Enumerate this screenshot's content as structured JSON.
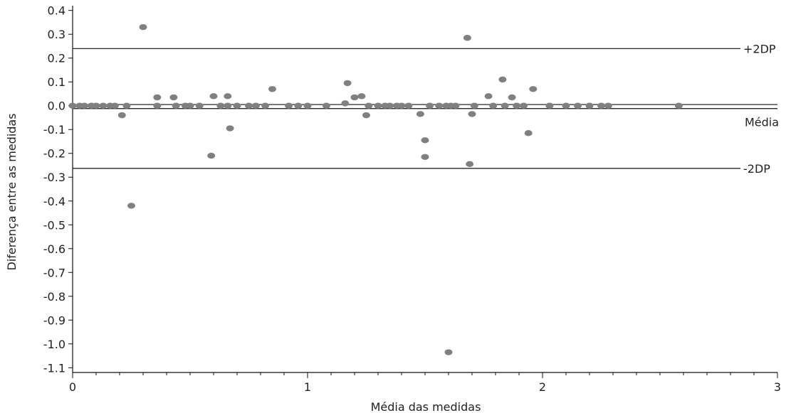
{
  "chart_data": {
    "type": "scatter",
    "xlabel": "Média das medidas",
    "ylabel": "Diferença entre as medidas",
    "xlim": [
      0,
      3
    ],
    "ylim": [
      -1.12,
      0.42
    ],
    "grid": false,
    "x_major_ticks": [
      0,
      1,
      2,
      3
    ],
    "x_tick_labels": [
      "0",
      "1",
      "2",
      "3"
    ],
    "x_minor_step": 0.1,
    "y_ticks": [
      0.4,
      0.3,
      0.2,
      0.1,
      0.0,
      -0.1,
      -0.2,
      -0.3,
      -0.4,
      -0.5,
      -0.6,
      -0.7,
      -0.8,
      -0.9,
      -1.0,
      -1.1
    ],
    "y_tick_labels": [
      "0.4",
      "0.3",
      "0.2",
      "0.1",
      "0.0",
      "-0.1",
      "-0.2",
      "-0.3",
      "-0.4",
      "-0.5",
      "-0.6",
      "-0.7",
      "-0.8",
      "-0.9",
      "-1.0",
      "-1.1"
    ],
    "reference_lines": [
      {
        "label": "+2DP",
        "y": 0.24
      },
      {
        "label": "",
        "y": 0.005
      },
      {
        "label": "Média",
        "y": -0.012
      },
      {
        "label": "-2DP",
        "y": -0.263
      }
    ],
    "marker_color": "#808080",
    "line_color": "#111111",
    "points": [
      {
        "x": 0.0,
        "y": 0.0
      },
      {
        "x": 0.03,
        "y": 0.0
      },
      {
        "x": 0.05,
        "y": 0.0
      },
      {
        "x": 0.08,
        "y": 0.0
      },
      {
        "x": 0.1,
        "y": 0.0
      },
      {
        "x": 0.13,
        "y": 0.0
      },
      {
        "x": 0.16,
        "y": 0.0
      },
      {
        "x": 0.18,
        "y": 0.0
      },
      {
        "x": 0.21,
        "y": -0.04
      },
      {
        "x": 0.23,
        "y": 0.0
      },
      {
        "x": 0.25,
        "y": -0.42
      },
      {
        "x": 0.3,
        "y": 0.33
      },
      {
        "x": 0.36,
        "y": 0.035
      },
      {
        "x": 0.36,
        "y": 0.0
      },
      {
        "x": 0.43,
        "y": 0.035
      },
      {
        "x": 0.44,
        "y": 0.0
      },
      {
        "x": 0.48,
        "y": 0.0
      },
      {
        "x": 0.5,
        "y": 0.0
      },
      {
        "x": 0.54,
        "y": 0.0
      },
      {
        "x": 0.59,
        "y": -0.21
      },
      {
        "x": 0.6,
        "y": 0.04
      },
      {
        "x": 0.63,
        "y": 0.0
      },
      {
        "x": 0.66,
        "y": 0.0
      },
      {
        "x": 0.66,
        "y": 0.04
      },
      {
        "x": 0.67,
        "y": -0.095
      },
      {
        "x": 0.7,
        "y": 0.0
      },
      {
        "x": 0.75,
        "y": 0.0
      },
      {
        "x": 0.78,
        "y": 0.0
      },
      {
        "x": 0.82,
        "y": 0.0
      },
      {
        "x": 0.85,
        "y": 0.07
      },
      {
        "x": 0.92,
        "y": 0.0
      },
      {
        "x": 0.96,
        "y": 0.0
      },
      {
        "x": 1.0,
        "y": 0.0
      },
      {
        "x": 1.08,
        "y": 0.0
      },
      {
        "x": 1.16,
        "y": 0.01
      },
      {
        "x": 1.17,
        "y": 0.095
      },
      {
        "x": 1.2,
        "y": 0.035
      },
      {
        "x": 1.23,
        "y": 0.04
      },
      {
        "x": 1.25,
        "y": -0.04
      },
      {
        "x": 1.26,
        "y": 0.0
      },
      {
        "x": 1.3,
        "y": 0.0
      },
      {
        "x": 1.33,
        "y": 0.0
      },
      {
        "x": 1.35,
        "y": 0.0
      },
      {
        "x": 1.38,
        "y": 0.0
      },
      {
        "x": 1.4,
        "y": 0.0
      },
      {
        "x": 1.43,
        "y": 0.0
      },
      {
        "x": 1.48,
        "y": -0.035
      },
      {
        "x": 1.5,
        "y": -0.145
      },
      {
        "x": 1.5,
        "y": -0.215
      },
      {
        "x": 1.52,
        "y": 0.0
      },
      {
        "x": 1.56,
        "y": 0.0
      },
      {
        "x": 1.59,
        "y": 0.0
      },
      {
        "x": 1.6,
        "y": -1.035
      },
      {
        "x": 1.61,
        "y": 0.0
      },
      {
        "x": 1.63,
        "y": 0.0
      },
      {
        "x": 1.68,
        "y": 0.285
      },
      {
        "x": 1.69,
        "y": -0.245
      },
      {
        "x": 1.7,
        "y": -0.035
      },
      {
        "x": 1.71,
        "y": 0.0
      },
      {
        "x": 1.77,
        "y": 0.04
      },
      {
        "x": 1.79,
        "y": 0.0
      },
      {
        "x": 1.83,
        "y": 0.11
      },
      {
        "x": 1.84,
        "y": 0.0
      },
      {
        "x": 1.87,
        "y": 0.035
      },
      {
        "x": 1.89,
        "y": 0.0
      },
      {
        "x": 1.92,
        "y": 0.0
      },
      {
        "x": 1.94,
        "y": -0.115
      },
      {
        "x": 1.96,
        "y": 0.07
      },
      {
        "x": 2.03,
        "y": 0.0
      },
      {
        "x": 2.1,
        "y": 0.0
      },
      {
        "x": 2.15,
        "y": 0.0
      },
      {
        "x": 2.2,
        "y": 0.0
      },
      {
        "x": 2.25,
        "y": 0.0
      },
      {
        "x": 2.28,
        "y": 0.0
      },
      {
        "x": 2.58,
        "y": 0.0
      }
    ]
  }
}
